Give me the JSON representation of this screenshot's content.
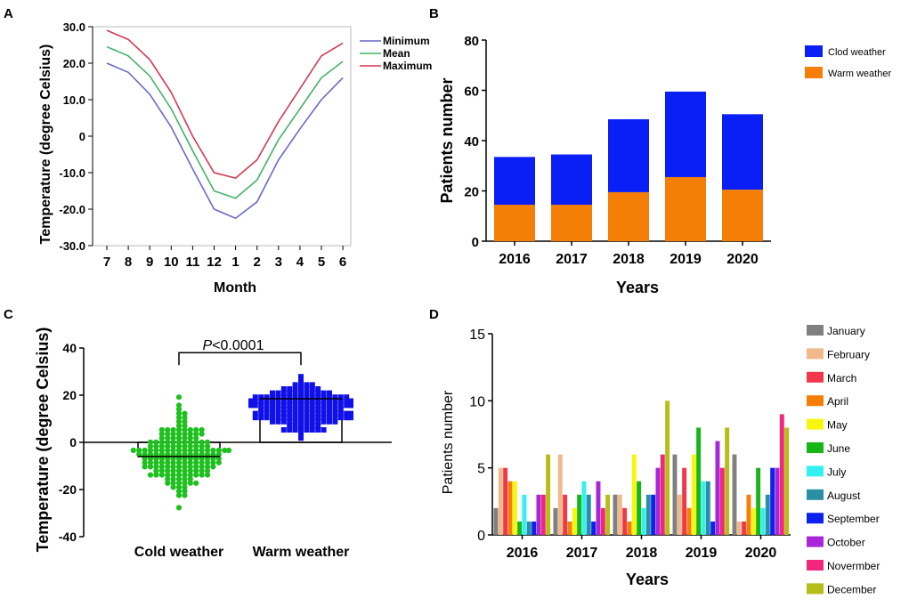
{
  "chart_data": [
    {
      "panel": "A",
      "type": "line",
      "xlabel": "Month",
      "ylabel": "Temperature (degree Celsius)",
      "categories": [
        "7",
        "8",
        "9",
        "10",
        "11",
        "12",
        "1",
        "2",
        "3",
        "4",
        "5",
        "6"
      ],
      "ytick_labels": [
        "30.0",
        "20.0",
        "10.0",
        "0",
        "-10.0",
        "-20.0",
        "-30.0"
      ],
      "ylim": [
        -30,
        30
      ],
      "series": [
        {
          "name": "Minimum",
          "color": "#6a68c6",
          "values": [
            20,
            17.5,
            11.5,
            2.5,
            -9,
            -20,
            -22.5,
            -18,
            -6.5,
            2,
            10,
            16
          ]
        },
        {
          "name": "Mean",
          "color": "#44b266",
          "values": [
            24.5,
            22,
            16.5,
            7.5,
            -4,
            -15,
            -17,
            -12,
            -1,
            7.5,
            16,
            20.5
          ]
        },
        {
          "name": "Maximum",
          "color": "#d13a52",
          "values": [
            29,
            26.5,
            21,
            12,
            0,
            -10,
            -11.5,
            -6.5,
            4,
            13,
            22,
            25.5
          ]
        }
      ]
    },
    {
      "panel": "B",
      "type": "bar",
      "stacked": true,
      "xlabel": "Years",
      "ylabel": "Patients number",
      "categories": [
        "2016",
        "2017",
        "2018",
        "2019",
        "2020"
      ],
      "ylim": [
        0,
        80
      ],
      "ytick_labels": [
        "0",
        "20",
        "40",
        "60",
        "80"
      ],
      "series": [
        {
          "name": "Warm weather",
          "color": "#f47e06",
          "values": [
            14.5,
            14.5,
            19.5,
            25.5,
            20.5
          ]
        },
        {
          "name": "Clod weather",
          "color": "#0a1ff5",
          "values": [
            19,
            20,
            29,
            34,
            30
          ]
        }
      ],
      "legend_order": [
        "Clod weather",
        "Warm weather"
      ]
    },
    {
      "panel": "C",
      "type": "scatter",
      "xlabel": "",
      "ylabel": "Temperature (degree Celsius)",
      "categories": [
        "Cold weather",
        "Warm weather"
      ],
      "ylim": [
        -40,
        40
      ],
      "ytick_labels": [
        "40",
        "20",
        "0",
        "-20",
        "-40"
      ],
      "annotation": "P<0.0001",
      "annotation_italic": "P",
      "annotation_rest": "<0.0001",
      "series": [
        {
          "name": "Cold weather",
          "color": "#1ec01e",
          "marker": "circle",
          "mean": -6,
          "min": -27,
          "max": 19
        },
        {
          "name": "Warm weather",
          "color": "#1010e8",
          "marker": "square",
          "mean": 18.5,
          "min": 1.5,
          "max": 28.5
        }
      ]
    },
    {
      "panel": "D",
      "type": "bar",
      "xlabel": "Years",
      "ylabel": "Patients number",
      "categories": [
        "2016",
        "2017",
        "2018",
        "2019",
        "2020"
      ],
      "ylim": [
        0,
        15
      ],
      "ytick_labels": [
        "0",
        "5",
        "10",
        "15"
      ],
      "series": [
        {
          "name": "January",
          "color": "#808080",
          "values": [
            2,
            2,
            3,
            6,
            6
          ]
        },
        {
          "name": "February",
          "color": "#f1b98a",
          "values": [
            5,
            6,
            3,
            3,
            1
          ]
        },
        {
          "name": "March",
          "color": "#f0384a",
          "values": [
            5,
            3,
            2,
            5,
            1
          ]
        },
        {
          "name": "April",
          "color": "#f47e06",
          "values": [
            4,
            1,
            1,
            2,
            3
          ]
        },
        {
          "name": "May",
          "color": "#f7f70e",
          "values": [
            4,
            2,
            6,
            6,
            2
          ]
        },
        {
          "name": "June",
          "color": "#16b616",
          "values": [
            1,
            3,
            4,
            8,
            5
          ]
        },
        {
          "name": "July",
          "color": "#35f0f0",
          "values": [
            3,
            4,
            2,
            4,
            2
          ]
        },
        {
          "name": "August",
          "color": "#2a8fa5",
          "values": [
            1,
            3,
            3,
            4,
            3
          ]
        },
        {
          "name": "September",
          "color": "#0b22f0",
          "values": [
            1,
            1,
            3,
            1,
            5
          ]
        },
        {
          "name": "October",
          "color": "#a826d8",
          "values": [
            3,
            4,
            5,
            7,
            5
          ]
        },
        {
          "name": "Novermber",
          "color": "#f0277a",
          "values": [
            3,
            2,
            6,
            5,
            9
          ]
        },
        {
          "name": "December",
          "color": "#b5be17",
          "values": [
            6,
            3,
            10,
            8,
            8
          ]
        }
      ]
    }
  ],
  "panel_labels": [
    "A",
    "B",
    "C",
    "D"
  ]
}
